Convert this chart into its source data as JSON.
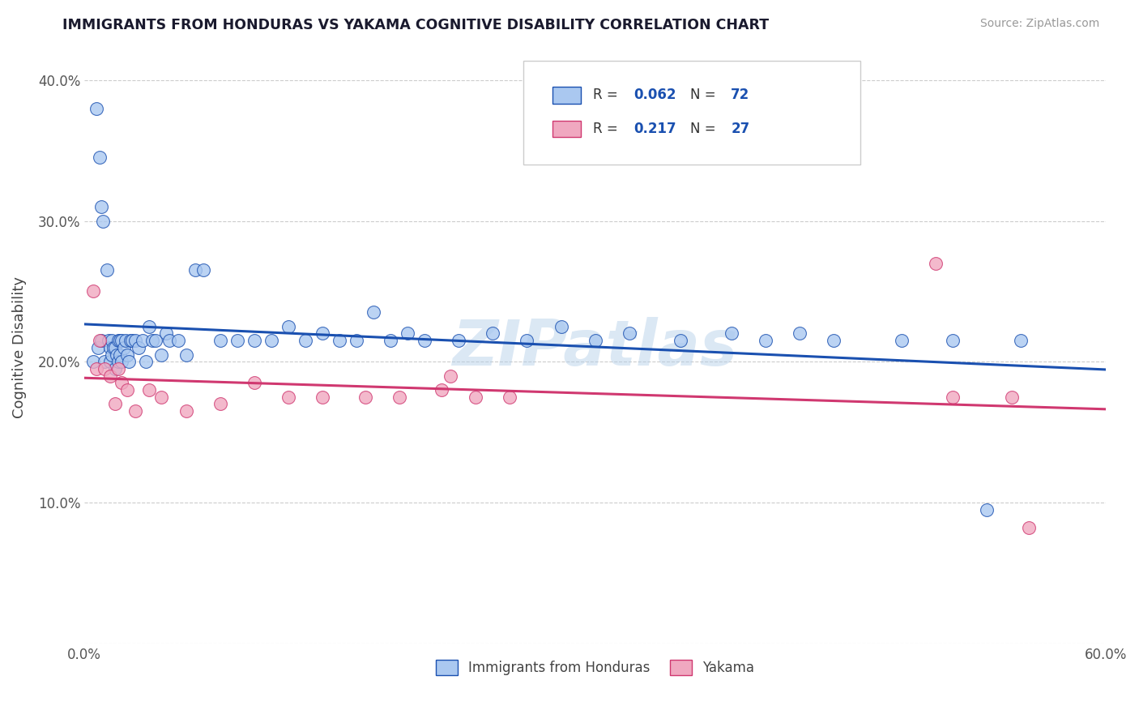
{
  "title": "IMMIGRANTS FROM HONDURAS VS YAKAMA COGNITIVE DISABILITY CORRELATION CHART",
  "source": "Source: ZipAtlas.com",
  "ylabel": "Cognitive Disability",
  "xlim": [
    0.0,
    0.6
  ],
  "ylim": [
    0.0,
    0.42
  ],
  "xtick_vals": [
    0.0,
    0.1,
    0.2,
    0.3,
    0.4,
    0.5,
    0.6
  ],
  "xtick_labels": [
    "0.0%",
    "",
    "",
    "",
    "",
    "",
    "60.0%"
  ],
  "ytick_vals": [
    0.0,
    0.1,
    0.2,
    0.3,
    0.4
  ],
  "ytick_labels": [
    "",
    "10.0%",
    "20.0%",
    "30.0%",
    "40.0%"
  ],
  "watermark": "ZIPatlas",
  "legend_r1": "0.062",
  "legend_n1": "72",
  "legend_r2": "0.217",
  "legend_n2": "27",
  "legend_label1": "Immigrants from Honduras",
  "legend_label2": "Yakama",
  "color_blue": "#aac8f0",
  "color_pink": "#f0a8c0",
  "line_blue": "#1a50b0",
  "line_pink": "#d03870",
  "blue_x": [
    0.005,
    0.007,
    0.008,
    0.009,
    0.01,
    0.01,
    0.011,
    0.012,
    0.013,
    0.014,
    0.015,
    0.015,
    0.016,
    0.016,
    0.017,
    0.018,
    0.018,
    0.019,
    0.02,
    0.02,
    0.021,
    0.021,
    0.022,
    0.022,
    0.023,
    0.024,
    0.025,
    0.026,
    0.027,
    0.028,
    0.03,
    0.032,
    0.034,
    0.036,
    0.038,
    0.04,
    0.042,
    0.045,
    0.048,
    0.05,
    0.055,
    0.06,
    0.065,
    0.07,
    0.08,
    0.09,
    0.1,
    0.11,
    0.12,
    0.13,
    0.14,
    0.15,
    0.16,
    0.17,
    0.18,
    0.19,
    0.2,
    0.22,
    0.24,
    0.26,
    0.28,
    0.3,
    0.32,
    0.35,
    0.38,
    0.4,
    0.42,
    0.44,
    0.48,
    0.51,
    0.53,
    0.55
  ],
  "blue_y": [
    0.2,
    0.195,
    0.21,
    0.215,
    0.195,
    0.215,
    0.205,
    0.2,
    0.22,
    0.215,
    0.21,
    0.2,
    0.215,
    0.205,
    0.21,
    0.195,
    0.21,
    0.205,
    0.2,
    0.215,
    0.215,
    0.205,
    0.215,
    0.2,
    0.21,
    0.215,
    0.205,
    0.2,
    0.215,
    0.215,
    0.215,
    0.21,
    0.215,
    0.2,
    0.225,
    0.215,
    0.215,
    0.205,
    0.22,
    0.215,
    0.215,
    0.205,
    0.265,
    0.215,
    0.215,
    0.215,
    0.215,
    0.215,
    0.225,
    0.215,
    0.22,
    0.215,
    0.215,
    0.235,
    0.215,
    0.22,
    0.215,
    0.215,
    0.22,
    0.215,
    0.225,
    0.215,
    0.22,
    0.215,
    0.22,
    0.215,
    0.22,
    0.215,
    0.215,
    0.215,
    0.22,
    0.215
  ],
  "blue_y_special": {
    "1": 0.38,
    "3": 0.345,
    "4": 0.31,
    "6": 0.3,
    "8": 0.265,
    "43": 0.265,
    "70": 0.095
  },
  "pink_x": [
    0.005,
    0.007,
    0.009,
    0.012,
    0.015,
    0.018,
    0.02,
    0.022,
    0.025,
    0.03,
    0.038,
    0.045,
    0.06,
    0.08,
    0.1,
    0.12,
    0.14,
    0.165,
    0.185,
    0.21,
    0.215,
    0.23,
    0.25,
    0.5,
    0.51,
    0.545,
    0.555
  ],
  "pink_y": [
    0.25,
    0.195,
    0.215,
    0.195,
    0.19,
    0.17,
    0.195,
    0.185,
    0.18,
    0.165,
    0.18,
    0.175,
    0.165,
    0.17,
    0.185,
    0.175,
    0.175,
    0.175,
    0.175,
    0.18,
    0.19,
    0.175,
    0.175,
    0.27,
    0.175,
    0.175,
    0.082
  ]
}
